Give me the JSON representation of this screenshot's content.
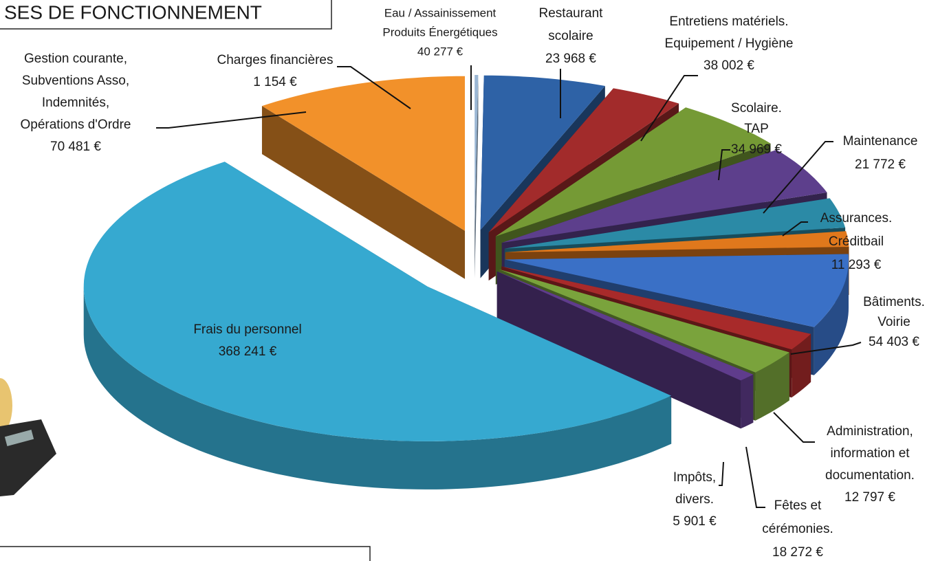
{
  "chart_data": {
    "type": "pie",
    "title": "SES DE FONCTIONNEMENT",
    "categories": [
      [
        "Charges financières"
      ],
      [
        "Eau / Assainissement",
        "Produits Énergétiques"
      ],
      [
        "Restaurant",
        "scolaire"
      ],
      [
        "Entretiens matériels.",
        "Equipement / Hygiène"
      ],
      [
        "Scolaire.",
        "TAP"
      ],
      [
        "Maintenance"
      ],
      [
        "Assurances.",
        "Créditbail"
      ],
      [
        "Bâtiments.",
        "Voirie"
      ],
      [
        "Administration,",
        "information et",
        "documentation."
      ],
      [
        "Fêtes et",
        "cérémonies."
      ],
      [
        "Impôts,",
        "divers."
      ],
      [
        "Frais du personnel"
      ],
      [
        "Gestion courante,",
        "Subventions Asso,",
        "Indemnités,",
        "Opérations d'Ordre"
      ]
    ],
    "values": [
      1154,
      40277,
      23968,
      38002,
      34969,
      21772,
      11293,
      54403,
      12797,
      18272,
      5901,
      368241,
      70481
    ],
    "value_labels": [
      "1 154 €",
      "40 277 €",
      "23 968 €",
      "38 002 €",
      "34 969 €",
      "21 772 €",
      "11 293 €",
      "54 403 €",
      "12 797  €",
      "18 272 €",
      "5 901 €",
      "368 241 €",
      "70 481 €"
    ],
    "colors": [
      "#9bb7d4",
      "#2e62a6",
      "#a22b2b",
      "#759a35",
      "#5d3f8c",
      "#2b8aa6",
      "#e0781c",
      "#3a70c6",
      "#a82a2a",
      "#7aa33c",
      "#5f3c8c",
      "#36a9d0",
      "#f2912a"
    ]
  }
}
